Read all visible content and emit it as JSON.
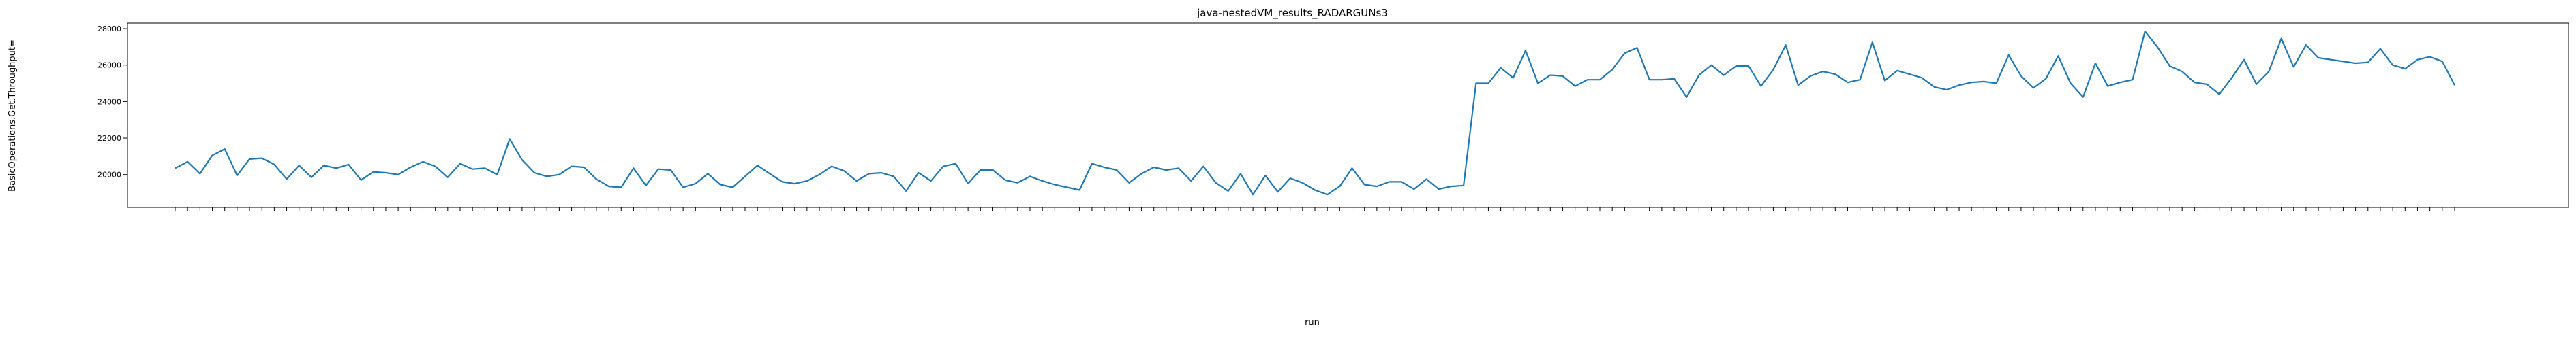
{
  "chart_data": {
    "type": "line",
    "title": "java-nestedVM_results_RADARGUNs3",
    "xlabel": "run",
    "ylabel": "BasicOperations.Get.Throughput=",
    "ylim": [
      18200,
      28300
    ],
    "yticks": [
      20000,
      22000,
      24000,
      26000,
      28000
    ],
    "grid": false,
    "series": [
      {
        "values": [
          20350,
          20700,
          20050,
          21050,
          21400,
          19950,
          20850,
          20900,
          20550,
          19750,
          20500,
          19850,
          20500,
          20350,
          20550,
          19700,
          20150,
          20100,
          20000,
          20400,
          20700,
          20450,
          19850,
          20600,
          20300,
          20350,
          20000,
          21950,
          20800,
          20100,
          19900,
          20000,
          20450,
          20400,
          19750,
          19350,
          19300,
          20350,
          19400,
          20300,
          20250,
          19300,
          19500,
          20050,
          19450,
          19300,
          19900,
          20500,
          20050,
          19600,
          19500,
          19650,
          20000,
          20450,
          20200,
          19650,
          20050,
          20100,
          19900,
          19100,
          20100,
          19650,
          20450,
          20600,
          19500,
          20250,
          20250,
          19700,
          19550,
          19900,
          19650,
          19450,
          19300,
          19150,
          20600,
          20400,
          20250,
          19550,
          20050,
          20400,
          20250,
          20350,
          19650,
          20450,
          19550,
          19100,
          20050,
          18900,
          19950,
          19050,
          19800,
          19550,
          19150,
          18900,
          19350,
          20350,
          19450,
          19350,
          19600,
          19600,
          19200,
          19750,
          19200,
          19350,
          19400,
          25000,
          25000,
          25850,
          25300,
          26800,
          25000,
          25450,
          25400,
          24850,
          25200,
          25200,
          25750,
          26650,
          26950,
          25200,
          25200,
          25250,
          24250,
          25450,
          26000,
          25450,
          25950,
          25950,
          24850,
          25750,
          27100,
          24900,
          25400,
          25650,
          25500,
          25050,
          25200,
          27250,
          25150,
          25700,
          25500,
          25300,
          24800,
          24650,
          24900,
          25050,
          25100,
          25000,
          26550,
          25400,
          24750,
          25250,
          26500,
          25000,
          24250,
          26100,
          24850,
          25050,
          25200,
          27850,
          27000,
          25950,
          25650,
          25050,
          24950,
          24400,
          25300,
          26300,
          24950,
          25650,
          27450,
          25900,
          27100,
          26400,
          26300,
          26200,
          26100,
          26150,
          26900,
          26000,
          25800,
          26300,
          26450,
          26200,
          24900
        ]
      }
    ],
    "xtick_labels": []
  }
}
